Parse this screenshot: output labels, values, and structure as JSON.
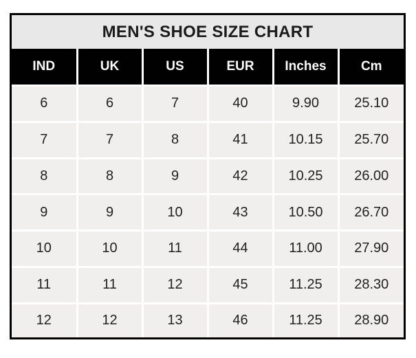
{
  "page": {
    "background": "#ffffff"
  },
  "chart_data": {
    "type": "table",
    "title": "MEN'S SHOE SIZE CHART",
    "columns": [
      "IND",
      "UK",
      "US",
      "EUR",
      "Inches",
      "Cm"
    ],
    "rows": [
      [
        "6",
        "6",
        "7",
        "40",
        "9.90",
        "25.10"
      ],
      [
        "7",
        "7",
        "8",
        "41",
        "10.15",
        "25.70"
      ],
      [
        "8",
        "8",
        "9",
        "42",
        "10.25",
        "26.00"
      ],
      [
        "9",
        "9",
        "10",
        "43",
        "10.50",
        "26.70"
      ],
      [
        "10",
        "10",
        "11",
        "44",
        "11.00",
        "27.90"
      ],
      [
        "11",
        "11",
        "12",
        "45",
        "11.25",
        "28.30"
      ],
      [
        "12",
        "12",
        "13",
        "46",
        "11.25",
        "28.90"
      ]
    ],
    "layout": {
      "grid": "white 3px separators between cells",
      "legend": "none",
      "header_style": "black band with white bold labels",
      "title_position": "top, centered"
    }
  },
  "colors": {
    "outer_border": "#000000",
    "title_bg": "#e9e8e8",
    "title_text": "#1b1b1b",
    "header_bg": "#010101",
    "header_text": "#fdfdfd",
    "cell_bg": "#f0efee",
    "cell_text": "#212121",
    "separator": "#ffffff"
  }
}
